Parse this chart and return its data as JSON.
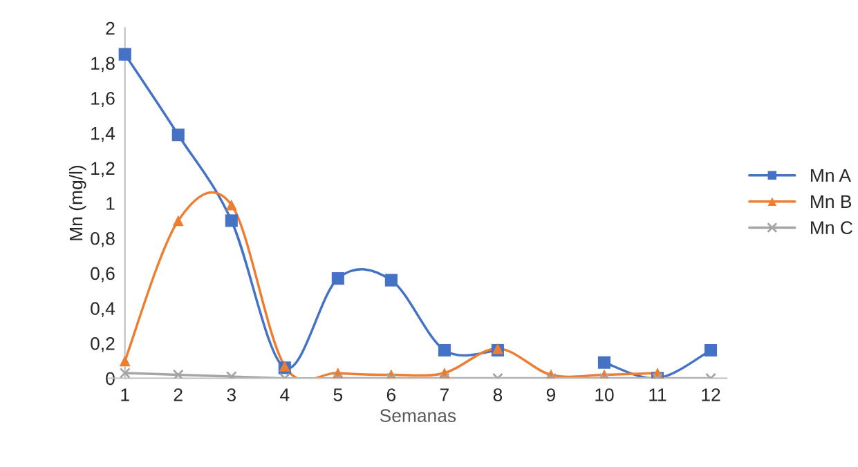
{
  "chart_data": {
    "type": "line",
    "xlabel": "Semanas",
    "ylabel": "Mn (mg/l)",
    "categories": [
      "1",
      "2",
      "3",
      "4",
      "5",
      "6",
      "7",
      "8",
      "9",
      "10",
      "11",
      "12"
    ],
    "series": [
      {
        "name": "Mn A",
        "color": "#4472c4",
        "marker": "square",
        "values": [
          1.85,
          1.39,
          0.9,
          0.06,
          0.57,
          0.56,
          0.16,
          0.16,
          null,
          0.09,
          0,
          0.16
        ]
      },
      {
        "name": "Mn B",
        "color": "#ed7d31",
        "marker": "triangle",
        "values": [
          0.1,
          0.9,
          0.99,
          0.07,
          0.03,
          0.02,
          0.03,
          0.17,
          0.02,
          0.02,
          0.03,
          null
        ]
      },
      {
        "name": "Mn C",
        "color": "#a5a5a5",
        "marker": "cross",
        "values": [
          0.03,
          0.02,
          0.01,
          0,
          0,
          0,
          0,
          0,
          0,
          0,
          0,
          0
        ]
      }
    ],
    "ylim": [
      0,
      2
    ],
    "yticks": [
      0,
      {
        "value": 0.2,
        "label": "0,2"
      },
      {
        "value": 0.4,
        "label": "0,4"
      },
      {
        "value": 0.6,
        "label": "0,6"
      },
      {
        "value": 0.8,
        "label": "0,8"
      },
      1,
      {
        "value": 1.2,
        "label": "1,2"
      },
      {
        "value": 1.4,
        "label": "1,4"
      },
      {
        "value": 1.6,
        "label": "1,6"
      },
      {
        "value": 1.8,
        "label": "1,8"
      },
      2
    ],
    "grid": false,
    "legend": "right",
    "line_style": "solid"
  }
}
